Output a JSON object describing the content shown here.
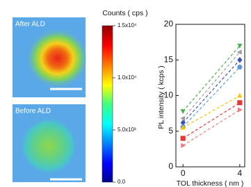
{
  "chart_data": [
    {
      "type": "colorbar",
      "title": "Counts ( cps )",
      "panels": [
        "After ALD",
        "Before ALD"
      ],
      "clim": [
        0,
        15000
      ],
      "cticks": [
        {
          "value": 15000,
          "label": "1.5x10⁴"
        },
        {
          "value": 10000,
          "label": "1.0x10⁴"
        },
        {
          "value": 5000,
          "label": "5.0x10³"
        },
        {
          "value": 0,
          "label": "0.0"
        }
      ]
    },
    {
      "type": "line",
      "ylabel": "PL intensity ( kcps )",
      "xlabel": "TOL thickness ( nm )",
      "x": [
        0,
        4
      ],
      "xlim": [
        -0.5,
        4.35
      ],
      "xticks": [
        0,
        4
      ],
      "ylim": [
        0,
        20
      ],
      "yticks": [
        0,
        5,
        10,
        15,
        20
      ],
      "series": [
        {
          "color": "#4caf50",
          "marker": "tri-down",
          "values": [
            7.8,
            17
          ]
        },
        {
          "color": "#9e9e9e",
          "marker": "tri-left",
          "values": [
            6.8,
            16.1
          ]
        },
        {
          "color": "#3f51b5",
          "marker": "diamond",
          "values": [
            6.2,
            15
          ]
        },
        {
          "color": "#5b9bd5",
          "marker": "circle",
          "values": [
            5.6,
            14
          ]
        },
        {
          "color": "#f5c400",
          "marker": "tri-up",
          "values": [
            5.5,
            10
          ]
        },
        {
          "color": "#e53935",
          "marker": "square",
          "values": [
            4,
            9
          ]
        },
        {
          "color": "#ef7a7a",
          "marker": "tri-right",
          "values": [
            3,
            8
          ]
        }
      ]
    }
  ]
}
